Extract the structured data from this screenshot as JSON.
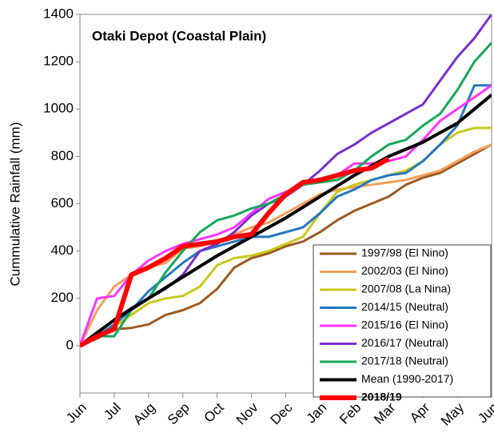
{
  "chart_data": {
    "type": "line",
    "title": "Otaki Depot (Coastal Plain)",
    "y_label": "Cummulative Rainfall (mm)",
    "x": [
      0,
      0.5,
      1,
      1.5,
      2,
      2.5,
      3,
      3.5,
      4,
      4.5,
      5,
      5.5,
      6,
      6.5,
      7,
      7.5,
      8,
      8.5,
      9,
      9.5,
      10,
      10.5,
      11,
      11.5,
      12
    ],
    "xlim": [
      0,
      12
    ],
    "xticks": [
      {
        "value": 0,
        "label": "Jun"
      },
      {
        "value": 1,
        "label": "Jul"
      },
      {
        "value": 2,
        "label": "Aug"
      },
      {
        "value": 3,
        "label": "Sep"
      },
      {
        "value": 4,
        "label": "Oct"
      },
      {
        "value": 5,
        "label": "Nov"
      },
      {
        "value": 6,
        "label": "Dec"
      },
      {
        "value": 7,
        "label": "Jan"
      },
      {
        "value": 8,
        "label": "Feb"
      },
      {
        "value": 9,
        "label": "Mar"
      },
      {
        "value": 10,
        "label": "Apr"
      },
      {
        "value": 11,
        "label": "May"
      },
      {
        "value": 12,
        "label": "Jun"
      }
    ],
    "ylim": [
      -200,
      1400
    ],
    "yticks": [
      0,
      200,
      400,
      600,
      800,
      1000,
      1200,
      1400
    ],
    "legend": "lower right",
    "series": [
      {
        "name": "1997/98 (El Nino)",
        "color": "#9c5a22",
        "width": 3,
        "values": [
          0,
          30,
          70,
          75,
          90,
          130,
          150,
          180,
          240,
          330,
          370,
          390,
          420,
          440,
          480,
          530,
          570,
          600,
          630,
          680,
          710,
          730,
          770,
          810,
          850
        ]
      },
      {
        "name": "2002/03 (El Nino)",
        "color": "#f4a05a",
        "width": 3,
        "values": [
          0,
          150,
          250,
          300,
          330,
          350,
          410,
          420,
          440,
          470,
          500,
          520,
          560,
          600,
          640,
          660,
          670,
          680,
          690,
          700,
          720,
          740,
          780,
          820,
          850
        ]
      },
      {
        "name": "2007/08 (La Nina)",
        "color": "#c8c81e",
        "width": 3,
        "values": [
          0,
          40,
          80,
          130,
          180,
          200,
          210,
          250,
          340,
          370,
          380,
          400,
          430,
          460,
          560,
          650,
          680,
          700,
          720,
          740,
          780,
          850,
          900,
          920,
          920
        ]
      },
      {
        "name": "2014/15 (Neutral)",
        "color": "#2478be",
        "width": 3,
        "values": [
          0,
          40,
          90,
          150,
          230,
          290,
          350,
          400,
          420,
          440,
          460,
          460,
          480,
          500,
          560,
          630,
          660,
          700,
          720,
          730,
          780,
          850,
          930,
          1100,
          1100
        ]
      },
      {
        "name": "2015/16 (El Nino)",
        "color": "#ff33ff",
        "width": 3,
        "values": [
          0,
          200,
          210,
          300,
          360,
          400,
          430,
          450,
          470,
          500,
          560,
          620,
          650,
          680,
          700,
          720,
          770,
          770,
          780,
          800,
          870,
          950,
          1000,
          1050,
          1100
        ]
      },
      {
        "name": "2016/17 (Neutral)",
        "color": "#7a2fd0",
        "width": 3,
        "values": [
          0,
          50,
          110,
          160,
          200,
          240,
          300,
          400,
          430,
          480,
          550,
          600,
          630,
          680,
          740,
          810,
          850,
          900,
          940,
          980,
          1020,
          1120,
          1220,
          1300,
          1400
        ]
      },
      {
        "name": "2017/18 (Neutral)",
        "color": "#16a85a",
        "width": 3,
        "values": [
          0,
          40,
          40,
          150,
          200,
          310,
          400,
          480,
          530,
          550,
          580,
          600,
          640,
          680,
          690,
          700,
          740,
          800,
          850,
          870,
          930,
          980,
          1080,
          1200,
          1280
        ]
      },
      {
        "name": "Mean (1990-2017)",
        "color": "#000000",
        "width": 4,
        "values": [
          0,
          55,
          108,
          155,
          200,
          245,
          290,
          335,
          380,
          420,
          460,
          500,
          540,
          585,
          630,
          675,
          720,
          760,
          800,
          830,
          860,
          900,
          940,
          1000,
          1060
        ]
      },
      {
        "name": "2018/19",
        "color": "#ff0000",
        "width": 6,
        "values": [
          0,
          40,
          70,
          300,
          330,
          370,
          420,
          430,
          440,
          460,
          470,
          560,
          640,
          690,
          700,
          720,
          740,
          750,
          790,
          null,
          null,
          null,
          null,
          null,
          null
        ]
      }
    ]
  }
}
